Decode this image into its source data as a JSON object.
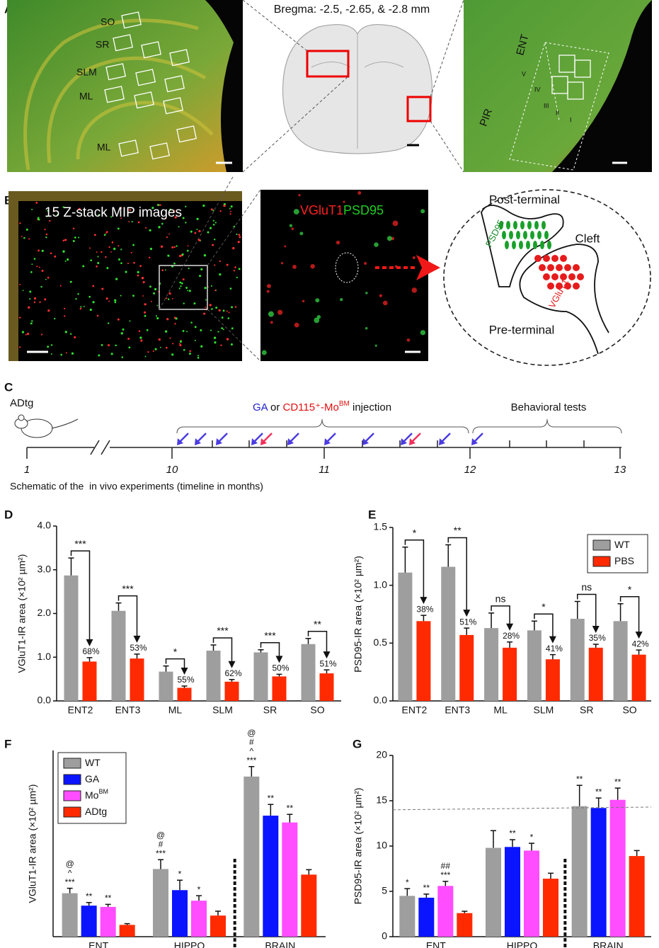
{
  "panel_labels": [
    "A",
    "B",
    "C",
    "D",
    "E",
    "F",
    "G"
  ],
  "panel_a": {
    "bregma": "Bregma: -2.5, -2.65, & -2.8 mm",
    "hippo_layers": [
      "SO",
      "SR",
      "SLM",
      "ML",
      "ML"
    ],
    "ent_labels": [
      "ENT",
      "PIR"
    ],
    "cortical_layers": [
      "V",
      "IV",
      "III",
      "II",
      "I"
    ]
  },
  "panel_b": {
    "mip": "15 Z-stack MIP images",
    "marker_red": "VGluT1",
    "marker_green": "PSD95",
    "post": "Post-terminal",
    "cleft": "Cleft",
    "pre": "Pre-terminal",
    "post_marker": "PSD95",
    "pre_marker": "VGluT1"
  },
  "panel_c": {
    "model": "ADtg",
    "injection_ga": "GA",
    "injection_or": " or ",
    "injection_mo": "CD115⁺-Mo",
    "injection_mo_sup": "BM",
    "injection_end": " injection",
    "behavior": "Behavioral tests",
    "months": [
      "1",
      "10",
      "11",
      "12",
      "13"
    ],
    "caption": "Schematic of the  in vivo experiments (timeline in months)"
  },
  "chart_data": [
    {
      "type": "bar",
      "ylabel": "VGluT1-IR area (×10² µm²)",
      "categories": [
        "ENT2",
        "ENT3",
        "ML",
        "SLM",
        "SR",
        "SO"
      ],
      "series": [
        {
          "color": "#9e9e9e",
          "values": [
            2.87,
            2.06,
            0.67,
            1.15,
            1.11,
            1.3
          ],
          "errors": [
            0.4,
            0.18,
            0.13,
            0.13,
            0.06,
            0.13
          ]
        },
        {
          "color": "#ff2a00",
          "values": [
            0.9,
            0.97,
            0.3,
            0.44,
            0.56,
            0.63
          ],
          "errors": [
            0.09,
            0.1,
            0.04,
            0.05,
            0.05,
            0.08
          ]
        }
      ],
      "ylim": [
        0,
        4
      ],
      "yticks": [
        {
          "value": 0,
          "label": "0.0"
        },
        {
          "value": 1,
          "label": "1.0"
        },
        {
          "value": 2,
          "label": "2.0"
        },
        {
          "value": 3,
          "label": "3.0"
        },
        {
          "value": 4,
          "label": "4.0"
        }
      ],
      "significance": [
        "***",
        "***",
        "*",
        "***",
        "***",
        "**"
      ],
      "percent_labels": [
        "68%",
        "53%",
        "55%",
        "62%",
        "50%",
        "51%"
      ]
    },
    {
      "type": "bar",
      "ylabel": "PSD95-IR area (×10² µm²)",
      "categories": [
        "ENT2",
        "ENT3",
        "ML",
        "SLM",
        "SR",
        "SO"
      ],
      "series": [
        {
          "name": "WT",
          "color": "#9e9e9e",
          "values": [
            1.11,
            1.16,
            0.63,
            0.61,
            0.71,
            0.69
          ],
          "errors": [
            0.22,
            0.19,
            0.13,
            0.08,
            0.15,
            0.15
          ]
        },
        {
          "name": "PBS",
          "color": "#ff2a00",
          "values": [
            0.69,
            0.57,
            0.46,
            0.36,
            0.46,
            0.4
          ],
          "errors": [
            0.05,
            0.06,
            0.05,
            0.04,
            0.03,
            0.04
          ]
        }
      ],
      "ylim": [
        0,
        1.5
      ],
      "yticks": [
        {
          "value": 0,
          "label": "0.0"
        },
        {
          "value": 0.5,
          "label": "0.5"
        },
        {
          "value": 1,
          "label": "1.0"
        },
        {
          "value": 1.5,
          "label": "1.5"
        }
      ],
      "significance": [
        "*",
        "**",
        "ns",
        "*",
        "ns",
        "*"
      ],
      "percent_labels": [
        "38%",
        "51%",
        "28%",
        "41%",
        "35%",
        "42%"
      ],
      "legend": "upper right"
    },
    {
      "type": "bar",
      "ylabel": "VGluT1-IR area (×10² µm²)",
      "categories": [
        "ENT",
        "HIPPO",
        "BRAIN"
      ],
      "series": [
        {
          "name": "WT",
          "color": "#9e9e9e",
          "values": [
            7.0,
            10.9,
            25.8
          ],
          "errors": [
            0.8,
            1.5,
            1.6
          ]
        },
        {
          "name": "GA",
          "color": "#0a14ff",
          "values": [
            5.0,
            7.5,
            19.5
          ],
          "errors": [
            0.5,
            1.6,
            1.8
          ]
        },
        {
          "name": "Mo",
          "name_sup": "BM",
          "color": "#ff4dff",
          "values": [
            4.8,
            5.8,
            18.4
          ],
          "errors": [
            0.4,
            0.8,
            1.3
          ]
        },
        {
          "name": "ADtg",
          "color": "#ff2a00",
          "values": [
            1.9,
            3.4,
            10.0
          ],
          "errors": [
            0.2,
            0.7,
            0.8
          ]
        }
      ],
      "ylim": [
        0,
        30
      ],
      "annotations": [
        [
          [
            "@",
            "^",
            "***"
          ],
          [
            "@",
            "#",
            "***"
          ],
          [
            "@",
            "#",
            "^",
            "***"
          ]
        ],
        [
          [
            "**"
          ],
          [
            "*"
          ],
          [
            "**"
          ]
        ],
        [
          [
            "**"
          ],
          [
            "*"
          ],
          [
            "**"
          ]
        ],
        [
          [],
          [],
          []
        ]
      ],
      "legend": "upper left"
    },
    {
      "type": "bar",
      "ylabel": "PSD95-IR area (×10² µm²)",
      "categories": [
        "ENT",
        "HIPPO",
        "BRAIN"
      ],
      "series": [
        {
          "color": "#9e9e9e",
          "values": [
            4.5,
            9.8,
            14.4
          ],
          "errors": [
            0.8,
            1.9,
            2.3
          ]
        },
        {
          "color": "#0a14ff",
          "values": [
            4.3,
            9.9,
            14.2
          ],
          "errors": [
            0.4,
            0.8,
            1.1
          ]
        },
        {
          "color": "#ff4dff",
          "values": [
            5.6,
            9.5,
            15.1
          ],
          "errors": [
            0.5,
            0.8,
            1.3
          ]
        },
        {
          "color": "#ff2a00",
          "values": [
            2.6,
            6.4,
            8.9
          ],
          "errors": [
            0.2,
            0.6,
            0.6
          ]
        }
      ],
      "ylim": [
        0,
        20
      ],
      "yticks": [
        0,
        5,
        10,
        15,
        20
      ],
      "annotations": [
        [
          [
            "*"
          ],
          [],
          [
            "**"
          ]
        ],
        [
          [
            "**"
          ],
          [
            "**"
          ],
          [
            "**"
          ]
        ],
        [
          [
            "##",
            "***"
          ],
          [
            "*"
          ],
          [
            "**"
          ]
        ],
        [
          [],
          [],
          []
        ]
      ],
      "dashed_line": [
        14.0,
        14.3
      ]
    }
  ]
}
